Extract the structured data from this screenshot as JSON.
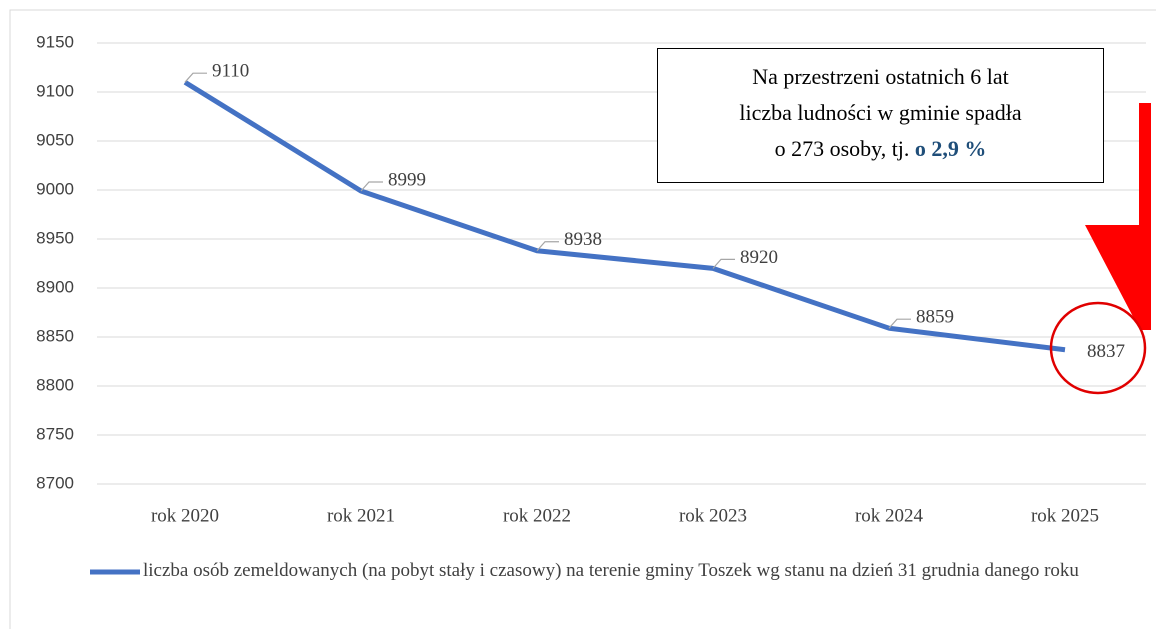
{
  "chart_data": {
    "type": "line",
    "categories": [
      "rok 2020",
      "rok 2021",
      "rok 2022",
      "rok 2023",
      "rok 2024",
      "rok 2025"
    ],
    "series": [
      {
        "name": "liczba osób zemeldowanych (na pobyt stały i czasowy) na terenie gminy Toszek  wg stanu na dzień 31 grudnia danego roku",
        "color": "#4472c4",
        "values": [
          9110,
          8999,
          8938,
          8920,
          8859,
          8837
        ]
      }
    ],
    "ylim": [
      8700,
      9150
    ],
    "yticks": [
      8700,
      8750,
      8800,
      8850,
      8900,
      8950,
      9000,
      9050,
      9100,
      9150
    ],
    "grid": true,
    "legend": "bottom",
    "annotation": {
      "lines": [
        "Na przestrzeni ostatnich 6 lat",
        "liczba ludności w gminie spadła",
        "o 273 osoby, tj."
      ],
      "highlight": "o 2,9 %"
    }
  }
}
